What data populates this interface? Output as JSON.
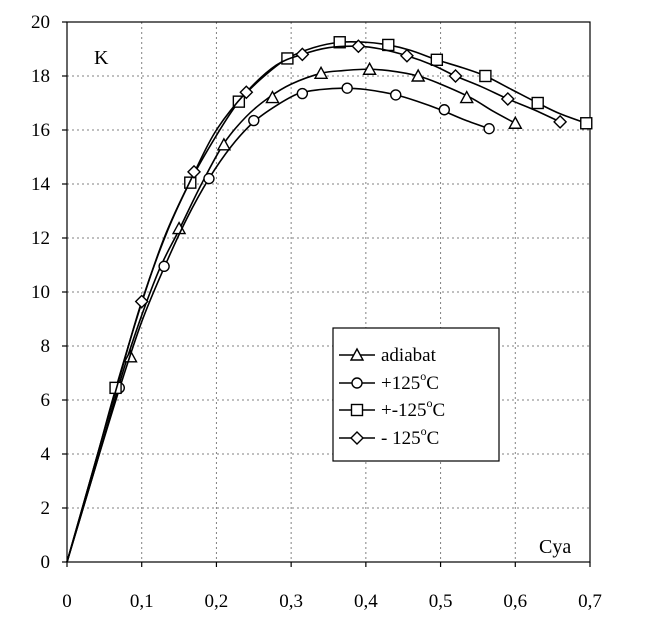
{
  "chart_data": {
    "type": "line",
    "title": "",
    "xlabel": "Cya",
    "ylabel": "K",
    "xlim": [
      0,
      0.7
    ],
    "ylim": [
      0,
      20
    ],
    "x_ticks": [
      "0",
      "0,1",
      "0,2",
      "0,3",
      "0,4",
      "0,5",
      "0,6",
      "0,7"
    ],
    "x_tick_values": [
      0,
      0.1,
      0.2,
      0.3,
      0.4,
      0.5,
      0.6,
      0.7
    ],
    "y_ticks": [
      "0",
      "2",
      "4",
      "6",
      "8",
      "10",
      "12",
      "14",
      "16",
      "18",
      "20"
    ],
    "y_tick_values": [
      0,
      2,
      4,
      6,
      8,
      10,
      12,
      14,
      16,
      18,
      20
    ],
    "grid": true,
    "legend_position": "center-right",
    "series": [
      {
        "name": "adiabat",
        "marker": "triangle",
        "curve": [
          [
            0,
            0
          ],
          [
            0.04,
            3.7
          ],
          [
            0.08,
            7.5
          ],
          [
            0.12,
            10.6
          ],
          [
            0.15,
            12.3
          ],
          [
            0.18,
            14.0
          ],
          [
            0.21,
            15.5
          ],
          [
            0.24,
            16.5
          ],
          [
            0.27,
            17.2
          ],
          [
            0.3,
            17.7
          ],
          [
            0.34,
            18.1
          ],
          [
            0.37,
            18.2
          ],
          [
            0.4,
            18.25
          ],
          [
            0.43,
            18.2
          ],
          [
            0.47,
            18.0
          ],
          [
            0.5,
            17.7
          ],
          [
            0.54,
            17.2
          ],
          [
            0.57,
            16.7
          ],
          [
            0.6,
            16.25
          ]
        ],
        "points": [
          [
            0.085,
            7.6
          ],
          [
            0.15,
            12.35
          ],
          [
            0.21,
            15.45
          ],
          [
            0.275,
            17.2
          ],
          [
            0.34,
            18.1
          ],
          [
            0.405,
            18.25
          ],
          [
            0.47,
            18.0
          ],
          [
            0.535,
            17.2
          ],
          [
            0.6,
            16.25
          ]
        ]
      },
      {
        "name": "+125",
        "legend_suffix": "C",
        "marker": "circle",
        "curve": [
          [
            0,
            0
          ],
          [
            0.04,
            3.7
          ],
          [
            0.07,
            6.4
          ],
          [
            0.1,
            8.9
          ],
          [
            0.13,
            10.9
          ],
          [
            0.16,
            12.7
          ],
          [
            0.19,
            14.2
          ],
          [
            0.22,
            15.4
          ],
          [
            0.25,
            16.3
          ],
          [
            0.28,
            16.9
          ],
          [
            0.31,
            17.35
          ],
          [
            0.34,
            17.5
          ],
          [
            0.37,
            17.55
          ],
          [
            0.4,
            17.5
          ],
          [
            0.44,
            17.3
          ],
          [
            0.47,
            17.05
          ],
          [
            0.5,
            16.75
          ],
          [
            0.53,
            16.4
          ],
          [
            0.565,
            16.05
          ]
        ],
        "points": [
          [
            0.07,
            6.45
          ],
          [
            0.13,
            10.95
          ],
          [
            0.19,
            14.2
          ],
          [
            0.25,
            16.35
          ],
          [
            0.315,
            17.35
          ],
          [
            0.375,
            17.55
          ],
          [
            0.44,
            17.3
          ],
          [
            0.505,
            16.75
          ],
          [
            0.565,
            16.05
          ]
        ]
      },
      {
        "name": "+-125",
        "legend_suffix": "C",
        "marker": "square",
        "curve": [
          [
            0,
            0
          ],
          [
            0.04,
            3.9
          ],
          [
            0.065,
            6.4
          ],
          [
            0.1,
            9.6
          ],
          [
            0.13,
            12.0
          ],
          [
            0.165,
            14.1
          ],
          [
            0.2,
            15.8
          ],
          [
            0.23,
            17.05
          ],
          [
            0.26,
            17.9
          ],
          [
            0.295,
            18.65
          ],
          [
            0.33,
            19.05
          ],
          [
            0.365,
            19.25
          ],
          [
            0.4,
            19.25
          ],
          [
            0.43,
            19.15
          ],
          [
            0.46,
            18.95
          ],
          [
            0.495,
            18.6
          ],
          [
            0.53,
            18.3
          ],
          [
            0.56,
            18.0
          ],
          [
            0.595,
            17.5
          ],
          [
            0.63,
            17.0
          ],
          [
            0.66,
            16.6
          ],
          [
            0.695,
            16.25
          ]
        ],
        "points": [
          [
            0.065,
            6.45
          ],
          [
            0.165,
            14.05
          ],
          [
            0.23,
            17.05
          ],
          [
            0.295,
            18.65
          ],
          [
            0.365,
            19.25
          ],
          [
            0.43,
            19.15
          ],
          [
            0.495,
            18.6
          ],
          [
            0.56,
            18.0
          ],
          [
            0.63,
            17.0
          ],
          [
            0.695,
            16.25
          ]
        ]
      },
      {
        "name": "- 125",
        "legend_suffix": "C",
        "marker": "diamond",
        "curve": [
          [
            0,
            0
          ],
          [
            0.04,
            3.9
          ],
          [
            0.07,
            6.8
          ],
          [
            0.1,
            9.65
          ],
          [
            0.135,
            12.3
          ],
          [
            0.17,
            14.4
          ],
          [
            0.2,
            16.0
          ],
          [
            0.24,
            17.4
          ],
          [
            0.28,
            18.4
          ],
          [
            0.315,
            18.8
          ],
          [
            0.35,
            19.05
          ],
          [
            0.39,
            19.1
          ],
          [
            0.42,
            19.0
          ],
          [
            0.455,
            18.75
          ],
          [
            0.49,
            18.4
          ],
          [
            0.52,
            18.0
          ],
          [
            0.555,
            17.6
          ],
          [
            0.59,
            17.15
          ],
          [
            0.625,
            16.75
          ],
          [
            0.66,
            16.3
          ]
        ],
        "points": [
          [
            0.1,
            9.65
          ],
          [
            0.17,
            14.45
          ],
          [
            0.24,
            17.4
          ],
          [
            0.315,
            18.8
          ],
          [
            0.39,
            19.1
          ],
          [
            0.455,
            18.75
          ],
          [
            0.52,
            18.0
          ],
          [
            0.59,
            17.15
          ],
          [
            0.66,
            16.3
          ]
        ]
      }
    ]
  }
}
